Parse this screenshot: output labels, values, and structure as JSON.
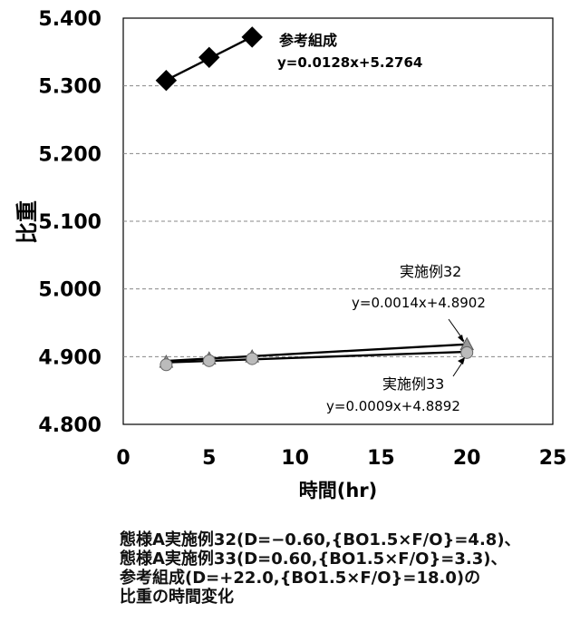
{
  "chart_data": {
    "type": "scatter",
    "xlabel": "時間(hr)",
    "ylabel": "比重",
    "xlim": [
      0,
      25
    ],
    "ylim": [
      4.8,
      5.4
    ],
    "xticks": [
      0,
      5,
      10,
      15,
      20,
      25
    ],
    "yticks": [
      4.8,
      4.9,
      5.0,
      5.1,
      5.2,
      5.3,
      5.4
    ],
    "xtick_labels": [
      "0",
      "5",
      "10",
      "15",
      "20",
      "25"
    ],
    "ytick_labels": [
      "4.800",
      "4.900",
      "5.000",
      "5.100",
      "5.200",
      "5.300",
      "5.400"
    ],
    "grid": "horizontal dashed",
    "series": [
      {
        "name": "参考組成",
        "equation": "y=0.0128x+5.2764",
        "marker": "diamond",
        "color": "#000000",
        "x": [
          2.5,
          5,
          7.5
        ],
        "y": [
          5.308,
          5.342,
          5.372
        ],
        "trend": {
          "slope": 0.0128,
          "intercept": 5.2764,
          "x_range": [
            2.5,
            7.5
          ]
        }
      },
      {
        "name": "実施例32",
        "equation": "y=0.0014x+4.8902",
        "marker": "triangle",
        "color": "#999999",
        "x": [
          2.5,
          5,
          7.5,
          20
        ],
        "y": [
          4.891,
          4.896,
          4.899,
          4.917
        ],
        "trend": {
          "slope": 0.0014,
          "intercept": 4.8902,
          "x_range": [
            2.5,
            20
          ]
        }
      },
      {
        "name": "実施例33",
        "equation": "y=0.0009x+4.8892",
        "marker": "circle",
        "color": "#bbbbbb",
        "x": [
          2.5,
          5,
          7.5,
          20
        ],
        "y": [
          4.888,
          4.894,
          4.897,
          4.906
        ],
        "trend": {
          "slope": 0.0009,
          "intercept": 4.8892,
          "x_range": [
            2.5,
            20
          ]
        }
      }
    ]
  },
  "caption": {
    "line1": "態様A実施例32(D=−0.60,{BO1.5×F/O}=4.8)、",
    "line2": "態様A実施例33(D=0.60,{BO1.5×F/O}=3.3)、",
    "line3": "参考組成(D=+22.0,{BO1.5×F/O}=18.0)の",
    "line4": "比重の時間変化"
  }
}
